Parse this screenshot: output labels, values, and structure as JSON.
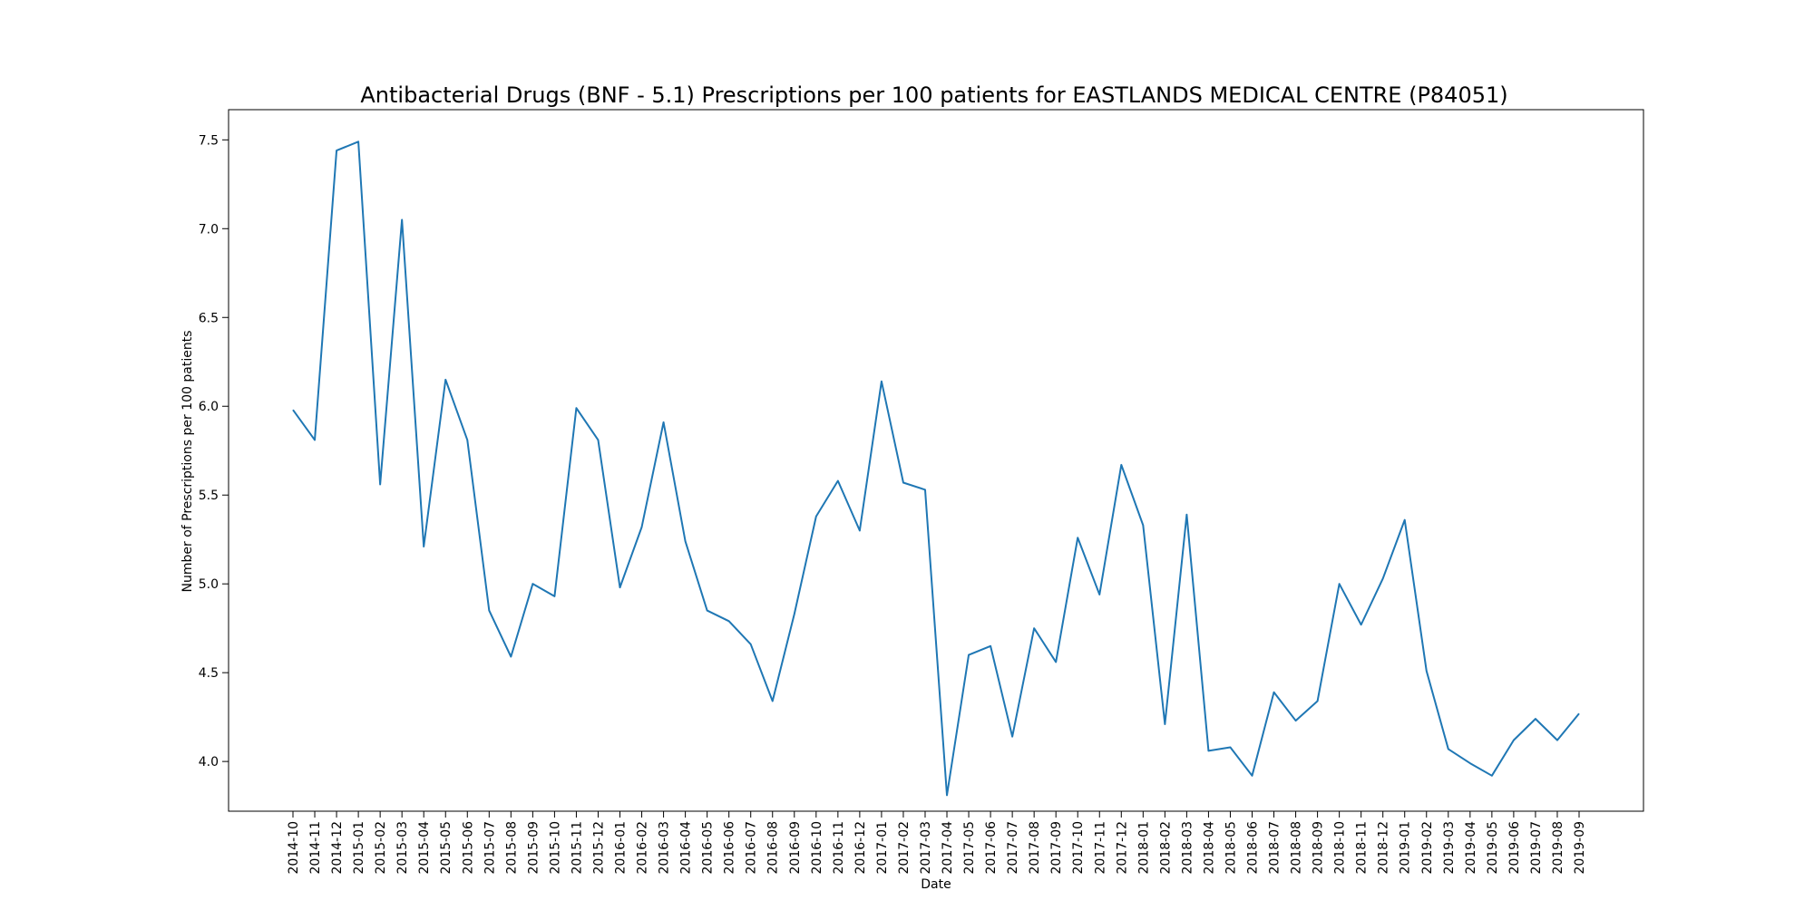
{
  "chart_data": {
    "type": "line",
    "title": "Antibacterial Drugs (BNF - 5.1) Prescriptions per 100 patients for EASTLANDS MEDICAL CENTRE (P84051)",
    "xlabel": "Date",
    "ylabel": "Number of Prescriptions per 100 patients",
    "ylim": [
      3.72,
      7.67
    ],
    "yticks": [
      "4.0",
      "4.5",
      "5.0",
      "5.5",
      "6.0",
      "6.5",
      "7.0",
      "7.5"
    ],
    "grid": false,
    "line_color": "#1f77b4",
    "x": [
      "2014-10",
      "2014-11",
      "2014-12",
      "2015-01",
      "2015-02",
      "2015-03",
      "2015-04",
      "2015-05",
      "2015-06",
      "2015-07",
      "2015-08",
      "2015-09",
      "2015-10",
      "2015-11",
      "2015-12",
      "2016-01",
      "2016-02",
      "2016-03",
      "2016-04",
      "2016-05",
      "2016-06",
      "2016-07",
      "2016-08",
      "2016-09",
      "2016-10",
      "2016-11",
      "2016-12",
      "2017-01",
      "2017-02",
      "2017-03",
      "2017-04",
      "2017-05",
      "2017-06",
      "2017-07",
      "2017-08",
      "2017-09",
      "2017-10",
      "2017-11",
      "2017-12",
      "2018-01",
      "2018-02",
      "2018-03",
      "2018-04",
      "2018-05",
      "2018-06",
      "2018-07",
      "2018-08",
      "2018-09",
      "2018-10",
      "2018-11",
      "2018-12",
      "2019-01",
      "2019-02",
      "2019-03",
      "2019-04",
      "2019-05",
      "2019-06",
      "2019-07",
      "2019-08",
      "2019-09"
    ],
    "values": [
      5.98,
      5.81,
      7.44,
      7.49,
      5.56,
      7.05,
      5.21,
      6.15,
      5.81,
      4.85,
      4.59,
      5.0,
      4.93,
      5.99,
      5.81,
      4.98,
      5.32,
      5.91,
      5.24,
      4.85,
      4.79,
      4.66,
      4.34,
      4.83,
      5.38,
      5.58,
      5.3,
      6.14,
      5.57,
      5.53,
      3.81,
      4.6,
      4.65,
      4.14,
      4.75,
      4.56,
      5.26,
      4.94,
      5.67,
      5.33,
      4.21,
      5.39,
      4.06,
      4.08,
      3.92,
      4.39,
      4.23,
      4.34,
      5.0,
      4.77,
      5.03,
      5.36,
      4.51,
      4.07,
      3.99,
      3.92,
      4.12,
      4.24,
      4.12,
      4.27
    ]
  }
}
